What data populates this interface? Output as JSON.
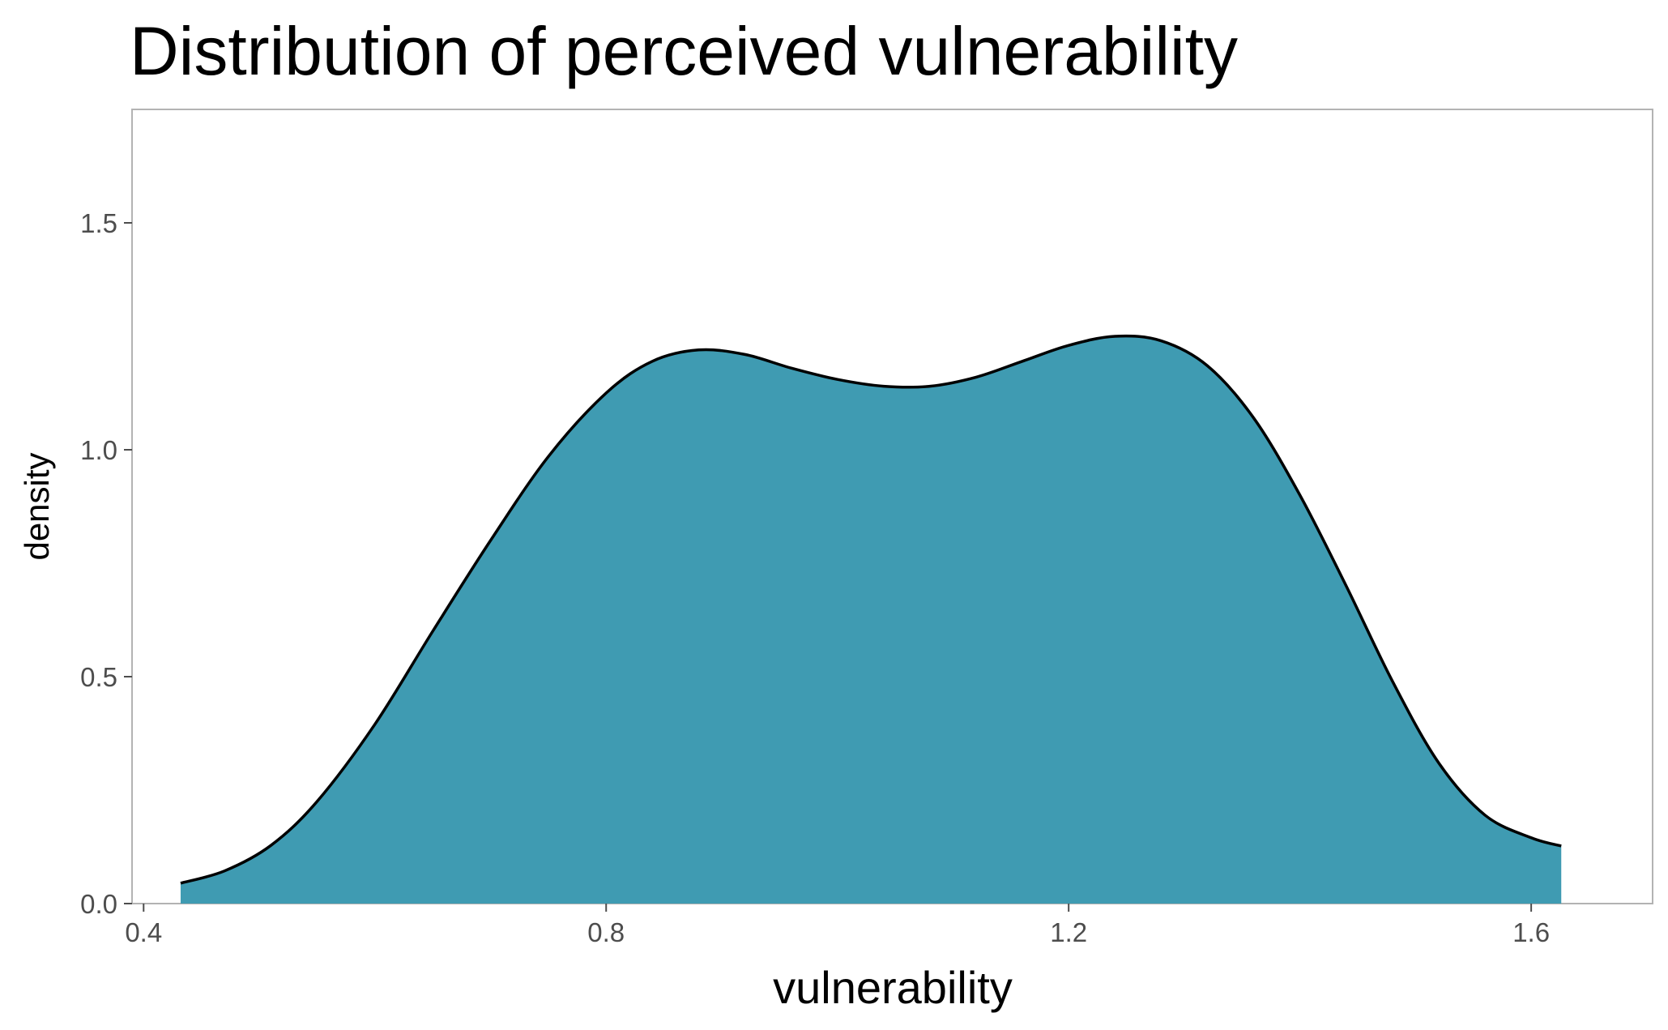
{
  "chart_data": {
    "type": "area",
    "title": "Distribution of perceived vulnerability",
    "xlabel": "vulnerability",
    "ylabel": "density",
    "xlim": [
      0.39,
      1.705
    ],
    "ylim": [
      0.0,
      1.75
    ],
    "x_ticks": [
      0.4,
      0.8,
      1.2,
      1.6
    ],
    "x_tick_labels": [
      "0.4",
      "0.8",
      "1.2",
      "1.6"
    ],
    "y_ticks": [
      0.0,
      0.5,
      1.0,
      1.5
    ],
    "y_tick_labels": [
      "0.0",
      "0.5",
      "1.0",
      "1.5"
    ],
    "grid": false,
    "legend": "none",
    "fill_color": "#3f9bb2",
    "line_color": "#000000",
    "series": [
      {
        "x": [
          0.432,
          0.47,
          0.51,
          0.55,
          0.6,
          0.65,
          0.7,
          0.75,
          0.8,
          0.84,
          0.88,
          0.92,
          0.96,
          1.0,
          1.04,
          1.08,
          1.12,
          1.16,
          1.2,
          1.24,
          1.28,
          1.32,
          1.36,
          1.4,
          1.44,
          1.48,
          1.52,
          1.56,
          1.6,
          1.626
        ],
        "y": [
          0.045,
          0.072,
          0.128,
          0.225,
          0.395,
          0.6,
          0.8,
          0.985,
          1.125,
          1.195,
          1.22,
          1.21,
          1.18,
          1.155,
          1.14,
          1.14,
          1.16,
          1.195,
          1.23,
          1.25,
          1.24,
          1.185,
          1.07,
          0.9,
          0.7,
          0.49,
          0.31,
          0.195,
          0.145,
          0.127
        ]
      }
    ]
  }
}
